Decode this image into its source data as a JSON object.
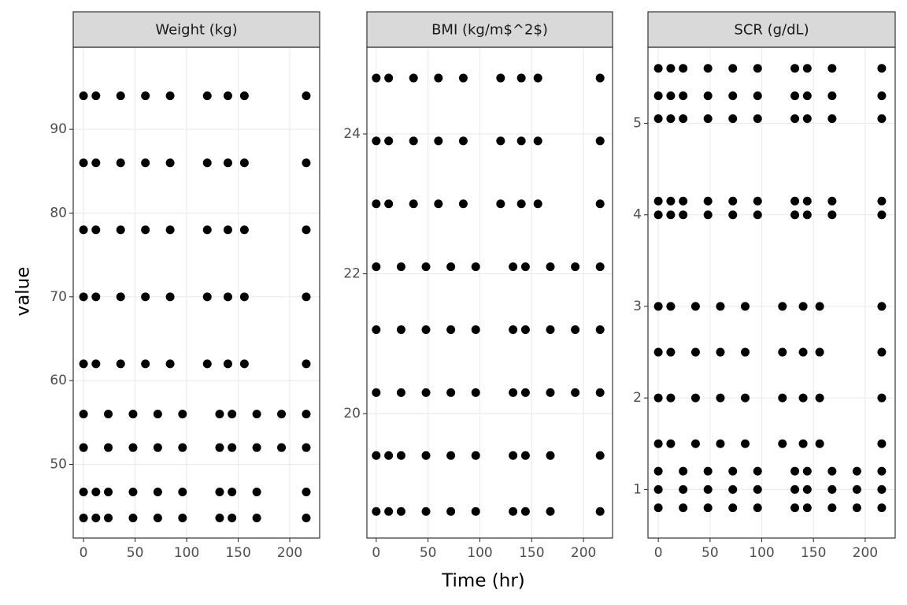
{
  "ylabel": "value",
  "xlabel": "Time (hr)",
  "chart_data": [
    {
      "type": "scatter",
      "title": "Weight (kg)",
      "color": "#000000",
      "grid": true,
      "xlim": [
        -10,
        229
      ],
      "xticks": [
        0,
        50,
        100,
        150,
        200
      ],
      "ylim": [
        41.2,
        99.8
      ],
      "yticks": [
        50,
        60,
        70,
        80,
        90
      ],
      "x": [
        0,
        12,
        24,
        48,
        72,
        96,
        132,
        144,
        168,
        216,
        0,
        12,
        24,
        48,
        72,
        96,
        132,
        144,
        168,
        216,
        0,
        24,
        48,
        72,
        96,
        132,
        144,
        168,
        192,
        216,
        0,
        24,
        48,
        72,
        96,
        132,
        144,
        168,
        192,
        216,
        0,
        12,
        36,
        60,
        84,
        120,
        140,
        156,
        216,
        0,
        12,
        36,
        60,
        84,
        120,
        140,
        156,
        216,
        0,
        12,
        36,
        60,
        84,
        120,
        140,
        156,
        216,
        0,
        12,
        36,
        60,
        84,
        120,
        140,
        156,
        216,
        0,
        12,
        36,
        60,
        84,
        120,
        140,
        156,
        216
      ],
      "values": [
        43.6,
        43.6,
        43.6,
        43.6,
        43.6,
        43.6,
        43.6,
        43.6,
        43.6,
        43.6,
        46.7,
        46.7,
        46.7,
        46.7,
        46.7,
        46.7,
        46.7,
        46.7,
        46.7,
        46.7,
        52,
        52,
        52,
        52,
        52,
        52,
        52,
        52,
        52,
        52,
        56,
        56,
        56,
        56,
        56,
        56,
        56,
        56,
        56,
        56,
        62,
        62,
        62,
        62,
        62,
        62,
        62,
        62,
        62,
        70,
        70,
        70,
        70,
        70,
        70,
        70,
        70,
        70,
        78,
        78,
        78,
        78,
        78,
        78,
        78,
        78,
        78,
        86,
        86,
        86,
        86,
        86,
        86,
        86,
        86,
        86,
        94,
        94,
        94,
        94,
        94,
        94,
        94,
        94,
        94
      ]
    },
    {
      "type": "scatter",
      "title": "BMI (kg/m$^2$)",
      "color": "#000000",
      "grid": true,
      "xlim": [
        -9,
        228
      ],
      "xticks": [
        0,
        50,
        100,
        150,
        200
      ],
      "ylim": [
        18.22,
        25.24
      ],
      "yticks": [
        20,
        22,
        24
      ],
      "x": [
        0,
        12,
        24,
        48,
        72,
        96,
        132,
        144,
        168,
        216,
        0,
        12,
        24,
        48,
        72,
        96,
        132,
        144,
        168,
        216,
        0,
        24,
        48,
        72,
        96,
        132,
        144,
        168,
        192,
        216,
        0,
        24,
        48,
        72,
        96,
        132,
        144,
        168,
        192,
        216,
        0,
        24,
        48,
        72,
        96,
        132,
        144,
        168,
        192,
        216,
        0,
        12,
        36,
        60,
        84,
        120,
        140,
        156,
        216,
        0,
        12,
        36,
        60,
        84,
        120,
        140,
        156,
        216,
        0,
        12,
        36,
        60,
        84,
        120,
        140,
        156,
        216
      ],
      "values": [
        18.6,
        18.6,
        18.6,
        18.6,
        18.6,
        18.6,
        18.6,
        18.6,
        18.6,
        18.6,
        19.4,
        19.4,
        19.4,
        19.4,
        19.4,
        19.4,
        19.4,
        19.4,
        19.4,
        19.4,
        20.3,
        20.3,
        20.3,
        20.3,
        20.3,
        20.3,
        20.3,
        20.3,
        20.3,
        20.3,
        21.2,
        21.2,
        21.2,
        21.2,
        21.2,
        21.2,
        21.2,
        21.2,
        21.2,
        21.2,
        22.1,
        22.1,
        22.1,
        22.1,
        22.1,
        22.1,
        22.1,
        22.1,
        22.1,
        22.1,
        23,
        23,
        23,
        23,
        23,
        23,
        23,
        23,
        23,
        23.9,
        23.9,
        23.9,
        23.9,
        23.9,
        23.9,
        23.9,
        23.9,
        23.9,
        24.8,
        24.8,
        24.8,
        24.8,
        24.8,
        24.8,
        24.8,
        24.8,
        24.8
      ]
    },
    {
      "type": "scatter",
      "title": "SCR (g/dL)",
      "color": "#000000",
      "grid": true,
      "xlim": [
        -10,
        229
      ],
      "xticks": [
        0,
        50,
        100,
        150,
        200
      ],
      "ylim": [
        0.47,
        5.83
      ],
      "yticks": [
        1,
        2,
        3,
        4,
        5
      ],
      "x": [
        0,
        24,
        48,
        72,
        96,
        132,
        144,
        168,
        192,
        216,
        0,
        24,
        48,
        72,
        96,
        132,
        144,
        168,
        192,
        216,
        0,
        24,
        48,
        72,
        96,
        132,
        144,
        168,
        192,
        216,
        0,
        12,
        36,
        60,
        84,
        120,
        140,
        156,
        216,
        0,
        12,
        36,
        60,
        84,
        120,
        140,
        156,
        216,
        0,
        12,
        36,
        60,
        84,
        120,
        140,
        156,
        216,
        0,
        12,
        36,
        60,
        84,
        120,
        140,
        156,
        216,
        0,
        12,
        24,
        48,
        72,
        96,
        132,
        144,
        168,
        216,
        0,
        12,
        24,
        48,
        72,
        96,
        132,
        144,
        168,
        216,
        0,
        12,
        24,
        48,
        72,
        96,
        132,
        144,
        168,
        216,
        0,
        12,
        24,
        48,
        72,
        96,
        132,
        144,
        168,
        216,
        0,
        12,
        24,
        48,
        72,
        96,
        132,
        144,
        168,
        216
      ],
      "values": [
        0.8,
        0.8,
        0.8,
        0.8,
        0.8,
        0.8,
        0.8,
        0.8,
        0.8,
        0.8,
        1,
        1,
        1,
        1,
        1,
        1,
        1,
        1,
        1,
        1,
        1.2,
        1.2,
        1.2,
        1.2,
        1.2,
        1.2,
        1.2,
        1.2,
        1.2,
        1.2,
        1.5,
        1.5,
        1.5,
        1.5,
        1.5,
        1.5,
        1.5,
        1.5,
        1.5,
        2,
        2,
        2,
        2,
        2,
        2,
        2,
        2,
        2,
        2.5,
        2.5,
        2.5,
        2.5,
        2.5,
        2.5,
        2.5,
        2.5,
        2.5,
        3,
        3,
        3,
        3,
        3,
        3,
        3,
        3,
        3,
        4,
        4,
        4,
        4,
        4,
        4,
        4,
        4,
        4,
        4,
        4.15,
        4.15,
        4.15,
        4.15,
        4.15,
        4.15,
        4.15,
        4.15,
        4.15,
        4.15,
        5.05,
        5.05,
        5.05,
        5.05,
        5.05,
        5.05,
        5.05,
        5.05,
        5.05,
        5.05,
        5.3,
        5.3,
        5.3,
        5.3,
        5.3,
        5.3,
        5.3,
        5.3,
        5.3,
        5.3,
        5.6,
        5.6,
        5.6,
        5.6,
        5.6,
        5.6,
        5.6,
        5.6,
        5.6,
        5.6
      ]
    }
  ]
}
